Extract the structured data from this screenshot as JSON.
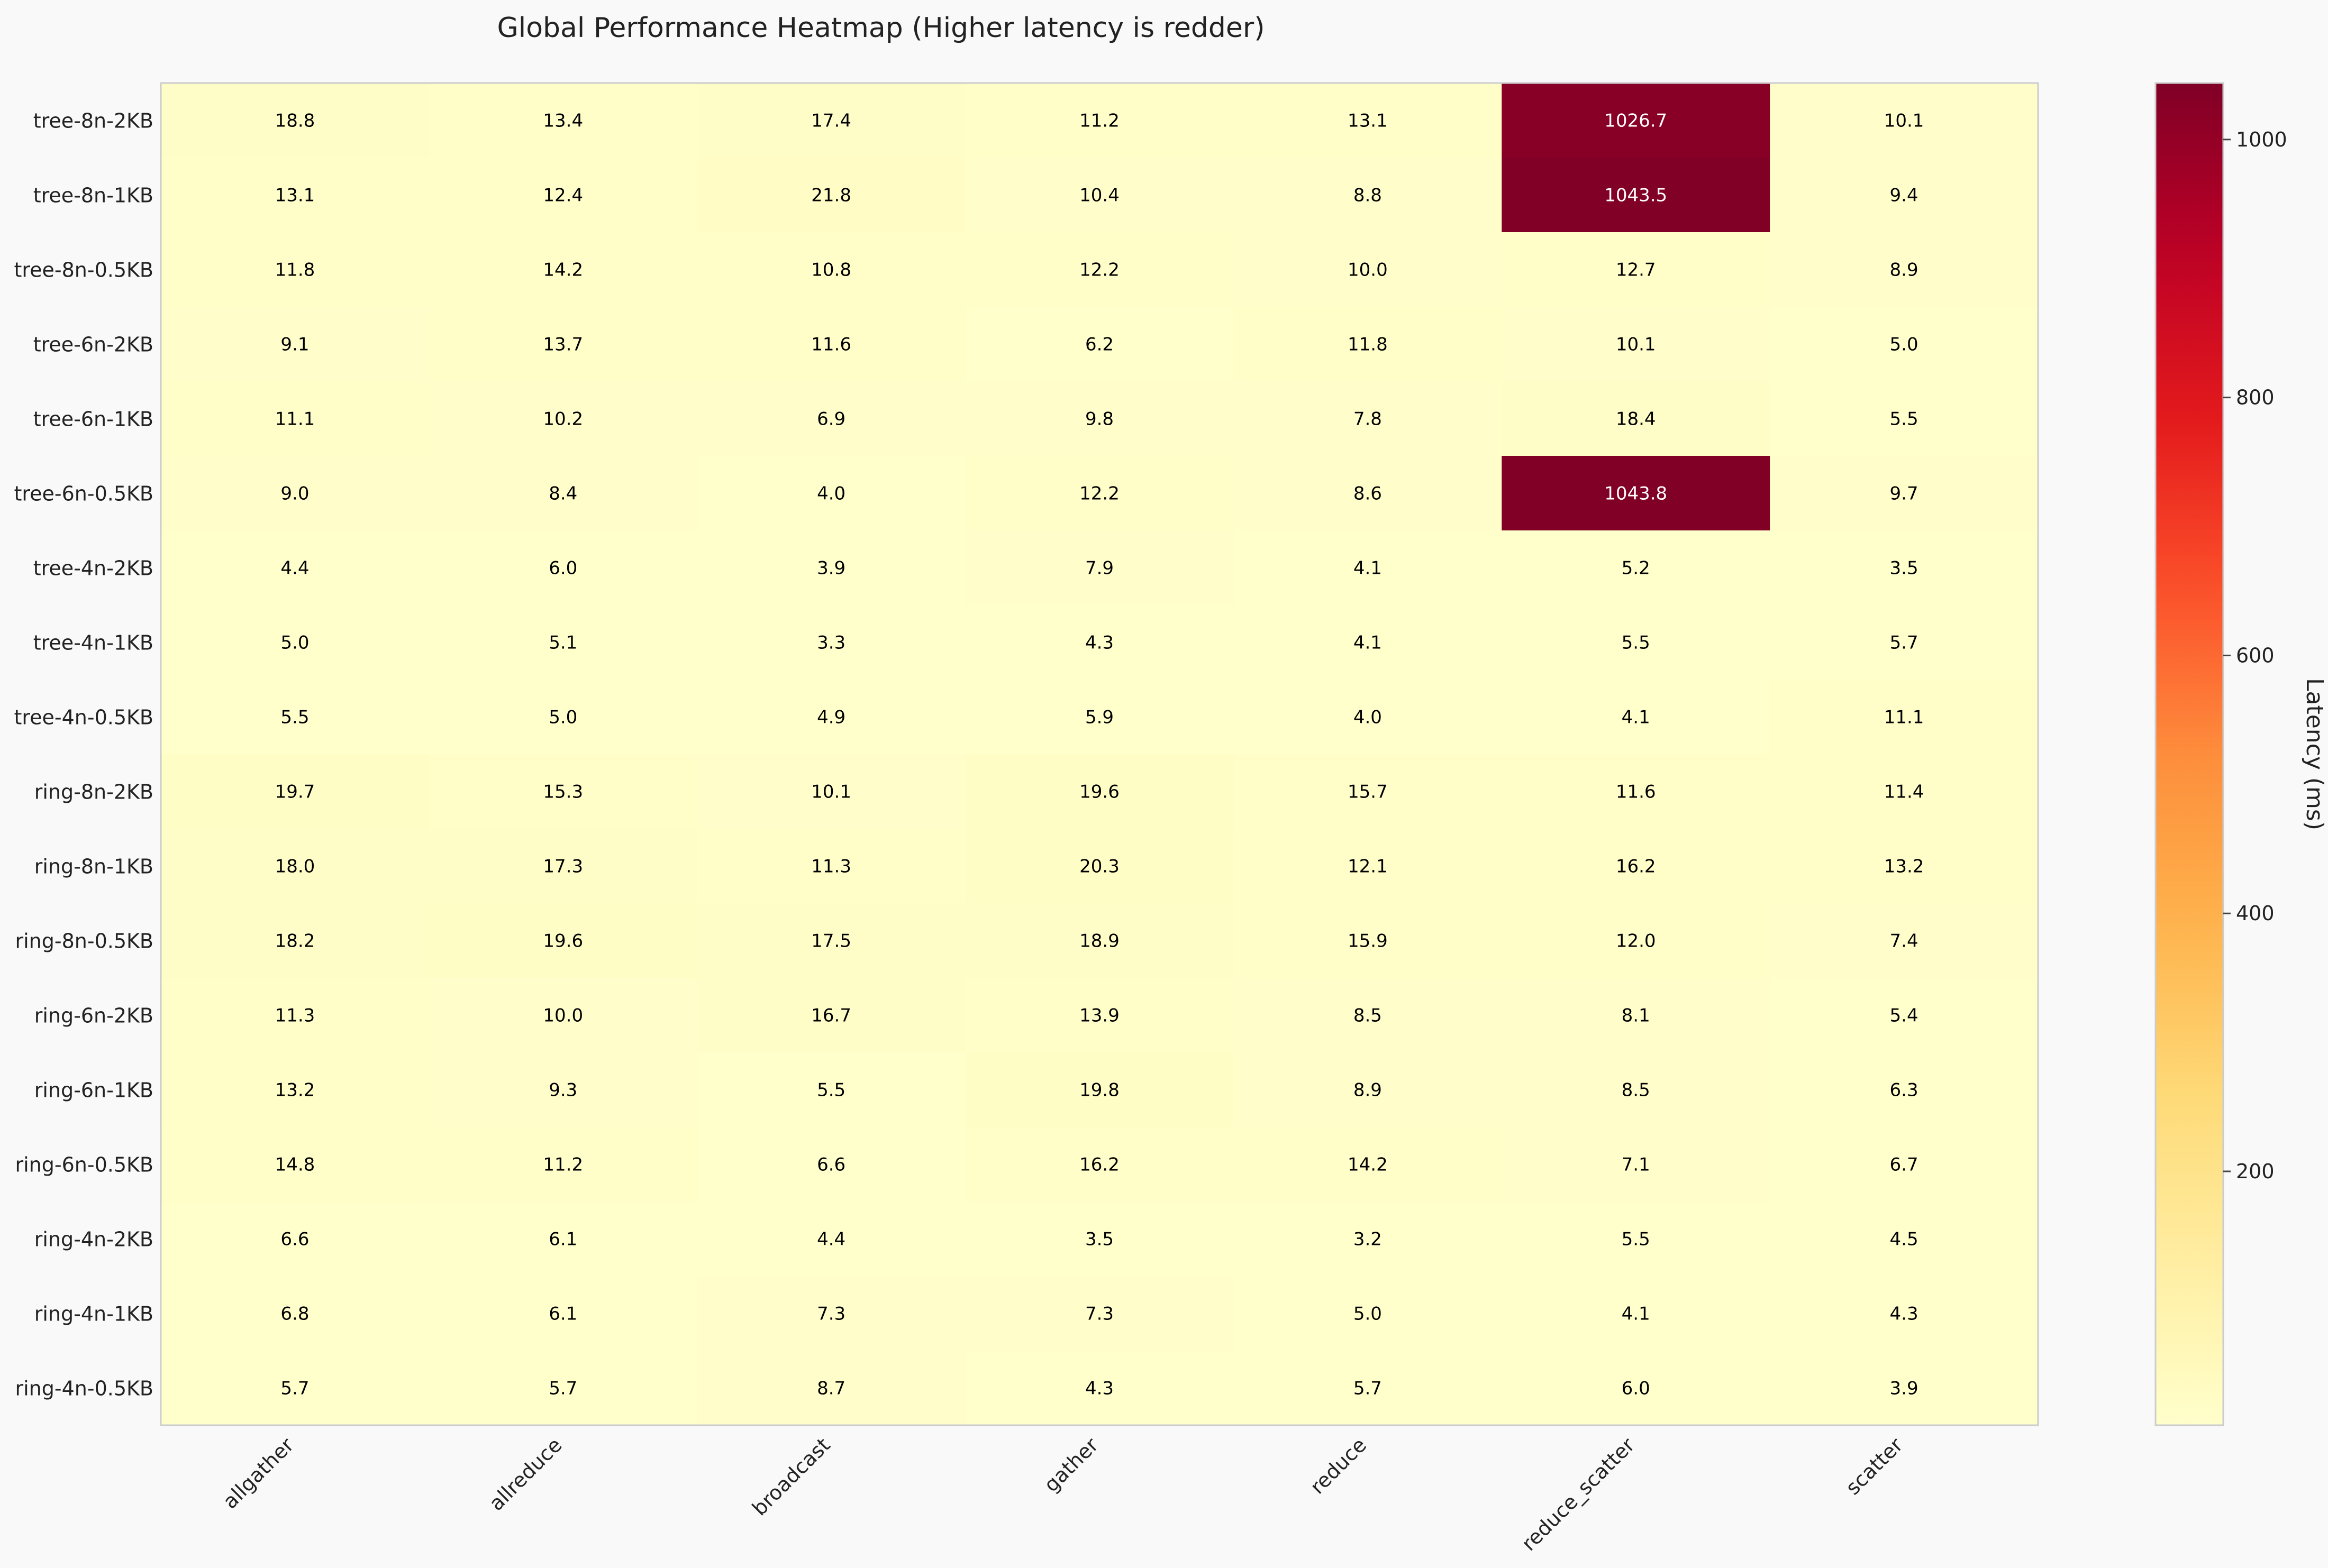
{
  "chart_data": {
    "type": "heatmap",
    "title": "Global Performance Heatmap (Higher latency is redder)",
    "xlabel": "",
    "ylabel": "",
    "colorbar_label": "Latency (ms)",
    "colorbar_ticks": [
      200,
      400,
      600,
      800,
      1000
    ],
    "colormap": "YlOrRd",
    "value_range": [
      3.2,
      1043.8
    ],
    "grid": false,
    "legend": "colorbar-right",
    "columns": [
      "allgather",
      "allreduce",
      "broadcast",
      "gather",
      "reduce",
      "reduce_scatter",
      "scatter"
    ],
    "rows": [
      "tree-8n-2KB",
      "tree-8n-1KB",
      "tree-8n-0.5KB",
      "tree-6n-2KB",
      "tree-6n-1KB",
      "tree-6n-0.5KB",
      "tree-4n-2KB",
      "tree-4n-1KB",
      "tree-4n-0.5KB",
      "ring-8n-2KB",
      "ring-8n-1KB",
      "ring-8n-0.5KB",
      "ring-6n-2KB",
      "ring-6n-1KB",
      "ring-6n-0.5KB",
      "ring-4n-2KB",
      "ring-4n-1KB",
      "ring-4n-0.5KB"
    ],
    "values": [
      [
        18.8,
        13.4,
        17.4,
        11.2,
        13.1,
        1026.7,
        10.1
      ],
      [
        13.1,
        12.4,
        21.8,
        10.4,
        8.8,
        1043.5,
        9.4
      ],
      [
        11.8,
        14.2,
        10.8,
        12.2,
        10.0,
        12.7,
        8.9
      ],
      [
        9.1,
        13.7,
        11.6,
        6.2,
        11.8,
        10.1,
        5.0
      ],
      [
        11.1,
        10.2,
        6.9,
        9.8,
        7.8,
        18.4,
        5.5
      ],
      [
        9.0,
        8.4,
        4.0,
        12.2,
        8.6,
        1043.8,
        9.7
      ],
      [
        4.4,
        6.0,
        3.9,
        7.9,
        4.1,
        5.2,
        3.5
      ],
      [
        5.0,
        5.1,
        3.3,
        4.3,
        4.1,
        5.5,
        5.7
      ],
      [
        5.5,
        5.0,
        4.9,
        5.9,
        4.0,
        4.1,
        11.1
      ],
      [
        19.7,
        15.3,
        10.1,
        19.6,
        15.7,
        11.6,
        11.4
      ],
      [
        18.0,
        17.3,
        11.3,
        20.3,
        12.1,
        16.2,
        13.2
      ],
      [
        18.2,
        19.6,
        17.5,
        18.9,
        15.9,
        12.0,
        7.4
      ],
      [
        11.3,
        10.0,
        16.7,
        13.9,
        8.5,
        8.1,
        5.4
      ],
      [
        13.2,
        9.3,
        5.5,
        19.8,
        8.9,
        8.5,
        6.3
      ],
      [
        14.8,
        11.2,
        6.6,
        16.2,
        14.2,
        7.1,
        6.7
      ],
      [
        6.6,
        6.1,
        4.4,
        3.5,
        3.2,
        5.5,
        4.5
      ],
      [
        6.8,
        6.1,
        7.3,
        7.3,
        5.0,
        4.1,
        4.3
      ],
      [
        5.7,
        5.7,
        8.7,
        4.3,
        5.7,
        6.0,
        3.9
      ]
    ]
  }
}
